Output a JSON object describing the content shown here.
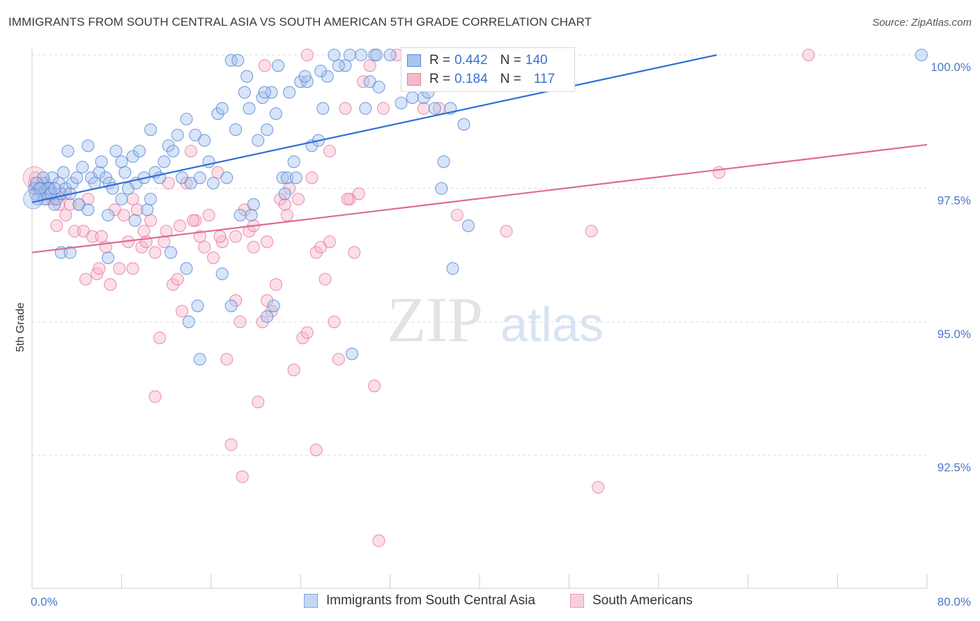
{
  "title": "IMMIGRANTS FROM SOUTH CENTRAL ASIA VS SOUTH AMERICAN 5TH GRADE CORRELATION CHART",
  "source": "Source: ZipAtlas.com",
  "watermark": {
    "zip": "ZIP",
    "atlas": "atlas"
  },
  "legend": {
    "row1": {
      "r_label": "R =",
      "r_value": "0.442",
      "n_label": "N =",
      "n_value": "140"
    },
    "row2": {
      "r_label": "R =",
      "r_value": "0.184",
      "n_label": "N =",
      "n_value": "117"
    }
  },
  "colors": {
    "blue_fill": "#a8c4ee",
    "blue_stroke": "#5a8ad6",
    "blue_line": "#2f6fd1",
    "pink_fill": "#f6b8cc",
    "pink_stroke": "#e67aa0",
    "pink_line": "#e0689a",
    "tick_text": "#4a78c8",
    "grid": "#dddddd"
  },
  "chart_data": {
    "type": "scatter",
    "title": "IMMIGRANTS FROM SOUTH CENTRAL ASIA VS SOUTH AMERICAN 5TH GRADE CORRELATION CHART",
    "xlabel": "",
    "ylabel": "5th Grade",
    "xlim": [
      0,
      80
    ],
    "ylim": [
      90.0,
      100.4
    ],
    "x_tick_labels": [
      "0.0%",
      "80.0%"
    ],
    "y_ticks": [
      92.5,
      95.0,
      97.5,
      100.0
    ],
    "y_tick_labels": [
      "92.5%",
      "95.0%",
      "97.5%",
      "100.0%"
    ],
    "grid": "horizontal dashed",
    "legend_position": "top-center",
    "series": [
      {
        "name": "Immigrants from South Central Asia",
        "color": "#a8c4ee",
        "trend": {
          "x": [
            0,
            61.2
          ],
          "y": [
            97.24,
            100.0
          ]
        },
        "points": [
          [
            0.3,
            97.4
          ],
          [
            0.6,
            97.5
          ],
          [
            0.8,
            97.5
          ],
          [
            1.0,
            97.4
          ],
          [
            1.2,
            97.6
          ],
          [
            1.4,
            97.5
          ],
          [
            1.6,
            97.4
          ],
          [
            1.8,
            97.7
          ],
          [
            2.0,
            97.2
          ],
          [
            2.2,
            97.3
          ],
          [
            2.4,
            97.6
          ],
          [
            2.6,
            97.4
          ],
          [
            2.8,
            97.8
          ],
          [
            3.0,
            97.5
          ],
          [
            3.2,
            98.2
          ],
          [
            3.4,
            97.4
          ],
          [
            3.6,
            97.6
          ],
          [
            4.0,
            97.7
          ],
          [
            4.2,
            97.2
          ],
          [
            4.5,
            97.9
          ],
          [
            5.0,
            98.3
          ],
          [
            5.3,
            97.7
          ],
          [
            5.6,
            97.6
          ],
          [
            6.0,
            97.8
          ],
          [
            6.2,
            98.0
          ],
          [
            6.6,
            97.7
          ],
          [
            6.9,
            97.6
          ],
          [
            7.2,
            97.5
          ],
          [
            7.5,
            98.2
          ],
          [
            8.0,
            98.0
          ],
          [
            8.3,
            97.8
          ],
          [
            8.6,
            97.5
          ],
          [
            9.0,
            98.1
          ],
          [
            9.3,
            97.6
          ],
          [
            9.6,
            98.2
          ],
          [
            10.0,
            97.7
          ],
          [
            10.3,
            97.1
          ],
          [
            10.6,
            98.6
          ],
          [
            11.0,
            97.8
          ],
          [
            11.4,
            97.7
          ],
          [
            11.8,
            98.0
          ],
          [
            12.2,
            98.3
          ],
          [
            12.6,
            98.2
          ],
          [
            13.0,
            98.5
          ],
          [
            13.4,
            97.7
          ],
          [
            13.8,
            98.8
          ],
          [
            14.2,
            97.6
          ],
          [
            14.6,
            98.5
          ],
          [
            15.0,
            97.7
          ],
          [
            15.4,
            98.4
          ],
          [
            15.8,
            98.0
          ],
          [
            16.2,
            97.6
          ],
          [
            16.6,
            98.9
          ],
          [
            17.0,
            99.0
          ],
          [
            17.4,
            97.7
          ],
          [
            17.8,
            99.9
          ],
          [
            18.2,
            98.6
          ],
          [
            18.6,
            97.0
          ],
          [
            19.0,
            99.3
          ],
          [
            19.4,
            99.0
          ],
          [
            19.8,
            97.2
          ],
          [
            20.2,
            98.4
          ],
          [
            20.6,
            99.2
          ],
          [
            21.0,
            98.6
          ],
          [
            21.4,
            99.3
          ],
          [
            21.8,
            98.9
          ],
          [
            22.4,
            97.7
          ],
          [
            22.8,
            97.7
          ],
          [
            23.4,
            98.0
          ],
          [
            24.0,
            99.5
          ],
          [
            24.6,
            99.5
          ],
          [
            25.0,
            98.3
          ],
          [
            25.6,
            98.4
          ],
          [
            26.0,
            99.0
          ],
          [
            26.4,
            99.6
          ],
          [
            27.0,
            100.0
          ],
          [
            28.0,
            99.8
          ],
          [
            28.4,
            100.0
          ],
          [
            29.4,
            100.0
          ],
          [
            29.8,
            99.0
          ],
          [
            30.2,
            99.5
          ],
          [
            30.6,
            100.0
          ],
          [
            31.0,
            99.4
          ],
          [
            32.0,
            100.0
          ],
          [
            33.0,
            99.1
          ],
          [
            34.0,
            99.2
          ],
          [
            35.0,
            99.2
          ],
          [
            36.0,
            99.0
          ],
          [
            37.4,
            99.0
          ],
          [
            38.6,
            98.7
          ],
          [
            39.0,
            96.8
          ],
          [
            37.6,
            96.0
          ],
          [
            36.8,
            98.0
          ],
          [
            36.6,
            97.5
          ],
          [
            40.0,
            100.0
          ],
          [
            41.4,
            100.0
          ],
          [
            79.5,
            100.0
          ],
          [
            1.0,
            97.7
          ],
          [
            2.6,
            96.3
          ],
          [
            3.4,
            96.3
          ],
          [
            5.0,
            97.1
          ],
          [
            6.8,
            97.0
          ],
          [
            6.8,
            96.2
          ],
          [
            8.0,
            97.3
          ],
          [
            9.2,
            96.9
          ],
          [
            10.6,
            97.3
          ],
          [
            12.4,
            96.3
          ],
          [
            13.8,
            96.0
          ],
          [
            14.0,
            95.0
          ],
          [
            14.8,
            95.3
          ],
          [
            15.0,
            94.3
          ],
          [
            17.0,
            95.9
          ],
          [
            17.8,
            95.3
          ],
          [
            19.6,
            97.0
          ],
          [
            21.0,
            95.1
          ],
          [
            21.6,
            95.3
          ],
          [
            22.6,
            97.4
          ],
          [
            23.6,
            97.7
          ],
          [
            28.6,
            94.4
          ],
          [
            0.5,
            97.3
          ],
          [
            0.9,
            97.5
          ],
          [
            1.1,
            97.3
          ],
          [
            1.3,
            97.4
          ],
          [
            1.5,
            97.5
          ],
          [
            1.7,
            97.4
          ],
          [
            0.2,
            97.5
          ],
          [
            0.4,
            97.6
          ],
          [
            0.7,
            97.5
          ],
          [
            2.0,
            97.5
          ],
          [
            18.4,
            99.9
          ],
          [
            19.2,
            99.6
          ],
          [
            20.8,
            99.3
          ],
          [
            22.0,
            99.8
          ],
          [
            23.0,
            99.3
          ],
          [
            24.4,
            99.6
          ],
          [
            25.8,
            99.7
          ],
          [
            27.4,
            99.8
          ],
          [
            30.8,
            100.0
          ],
          [
            33.6,
            99.6
          ],
          [
            35.4,
            99.3
          ]
        ]
      },
      {
        "name": "South Americans",
        "color": "#f6b8cc",
        "trend": {
          "x": [
            0,
            80
          ],
          "y": [
            96.3,
            98.32
          ]
        },
        "points": [
          [
            0.3,
            97.7
          ],
          [
            0.6,
            97.5
          ],
          [
            0.9,
            97.6
          ],
          [
            1.2,
            97.4
          ],
          [
            1.5,
            97.5
          ],
          [
            1.8,
            97.3
          ],
          [
            2.2,
            96.8
          ],
          [
            2.6,
            97.4
          ],
          [
            3.0,
            97.4
          ],
          [
            3.4,
            97.2
          ],
          [
            3.8,
            96.7
          ],
          [
            4.2,
            97.2
          ],
          [
            4.6,
            96.7
          ],
          [
            5.0,
            97.3
          ],
          [
            5.4,
            96.6
          ],
          [
            5.8,
            95.9
          ],
          [
            6.2,
            96.6
          ],
          [
            6.6,
            96.4
          ],
          [
            7.0,
            95.7
          ],
          [
            7.4,
            97.1
          ],
          [
            7.8,
            96.0
          ],
          [
            8.2,
            97.0
          ],
          [
            8.6,
            96.5
          ],
          [
            9.0,
            97.3
          ],
          [
            9.4,
            97.1
          ],
          [
            9.8,
            96.4
          ],
          [
            10.2,
            96.5
          ],
          [
            10.6,
            96.9
          ],
          [
            11.0,
            96.3
          ],
          [
            11.4,
            94.7
          ],
          [
            11.8,
            96.5
          ],
          [
            12.2,
            97.6
          ],
          [
            12.6,
            95.7
          ],
          [
            13.0,
            95.8
          ],
          [
            13.4,
            95.2
          ],
          [
            13.8,
            97.6
          ],
          [
            14.2,
            98.2
          ],
          [
            14.6,
            96.9
          ],
          [
            15.0,
            96.6
          ],
          [
            15.4,
            96.4
          ],
          [
            15.8,
            97.0
          ],
          [
            16.2,
            96.2
          ],
          [
            16.6,
            97.8
          ],
          [
            17.0,
            96.5
          ],
          [
            17.4,
            94.3
          ],
          [
            17.8,
            92.7
          ],
          [
            18.2,
            95.4
          ],
          [
            18.6,
            95.0
          ],
          [
            19.0,
            97.1
          ],
          [
            19.4,
            96.7
          ],
          [
            19.8,
            96.4
          ],
          [
            20.2,
            93.5
          ],
          [
            20.6,
            95.0
          ],
          [
            21.0,
            95.4
          ],
          [
            21.4,
            95.2
          ],
          [
            21.8,
            95.7
          ],
          [
            22.2,
            97.3
          ],
          [
            22.6,
            97.2
          ],
          [
            23.0,
            97.5
          ],
          [
            23.4,
            94.1
          ],
          [
            23.8,
            97.3
          ],
          [
            24.2,
            94.7
          ],
          [
            24.6,
            94.8
          ],
          [
            25.0,
            97.7
          ],
          [
            25.4,
            96.3
          ],
          [
            25.8,
            96.4
          ],
          [
            26.2,
            95.8
          ],
          [
            26.6,
            98.2
          ],
          [
            27.0,
            95.0
          ],
          [
            27.4,
            94.3
          ],
          [
            28.0,
            99.0
          ],
          [
            28.4,
            97.3
          ],
          [
            28.8,
            96.3
          ],
          [
            29.2,
            97.4
          ],
          [
            29.6,
            99.5
          ],
          [
            30.2,
            99.8
          ],
          [
            30.6,
            93.8
          ],
          [
            31.4,
            99.0
          ],
          [
            32.6,
            100.0
          ],
          [
            34.0,
            99.5
          ],
          [
            35.0,
            99.0
          ],
          [
            36.4,
            99.0
          ],
          [
            38.0,
            97.0
          ],
          [
            42.4,
            96.7
          ],
          [
            50.0,
            96.7
          ],
          [
            61.4,
            97.8
          ],
          [
            69.4,
            100.0
          ],
          [
            50.6,
            91.9
          ],
          [
            31.0,
            90.9
          ],
          [
            18.8,
            92.1
          ],
          [
            25.4,
            92.6
          ],
          [
            11.0,
            93.6
          ],
          [
            4.8,
            95.8
          ],
          [
            6.0,
            96.0
          ],
          [
            9.0,
            96.0
          ],
          [
            10.0,
            96.7
          ],
          [
            12.0,
            96.7
          ],
          [
            13.2,
            96.8
          ],
          [
            14.4,
            96.9
          ],
          [
            16.8,
            96.6
          ],
          [
            18.2,
            96.6
          ],
          [
            19.8,
            96.8
          ],
          [
            21.0,
            96.5
          ],
          [
            22.8,
            97.0
          ],
          [
            26.6,
            96.5
          ],
          [
            28.2,
            97.3
          ],
          [
            0.4,
            97.5
          ],
          [
            0.8,
            97.4
          ],
          [
            1.0,
            97.6
          ],
          [
            1.4,
            97.3
          ],
          [
            1.6,
            97.5
          ],
          [
            2.0,
            97.3
          ],
          [
            2.4,
            97.2
          ],
          [
            3.0,
            97.0
          ],
          [
            0.2,
            97.6
          ],
          [
            20.8,
            99.8
          ],
          [
            24.6,
            100.0
          ]
        ]
      }
    ]
  },
  "bottom_legend": {
    "item1": "Immigrants from South Central Asia",
    "item2": "South Americans"
  }
}
